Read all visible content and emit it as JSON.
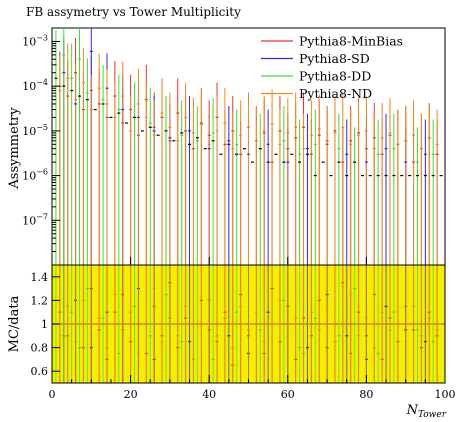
{
  "chart_data": {
    "type": "scatter",
    "title": "FB assymetry vs Tower Multiplicity",
    "xlabel": "N",
    "xlabel_sub": "Tower",
    "ylabel_main": "Assymmetry",
    "ylabel_ratio": "MC/data",
    "xlim": [
      0,
      100
    ],
    "ylim_main": [
      1e-08,
      0.002
    ],
    "ylim_ratio": [
      0.5,
      1.5
    ],
    "yscale_main": "log",
    "x_ticks": [
      "0",
      "20",
      "40",
      "60",
      "80",
      "100"
    ],
    "y_ticks_main": [
      {
        "base": "10",
        "exp": "−3",
        "value": 0.001
      },
      {
        "base": "10",
        "exp": "−4",
        "value": 0.0001
      },
      {
        "base": "10",
        "exp": "−5",
        "value": 1e-05
      },
      {
        "base": "10",
        "exp": "−6",
        "value": 1e-06
      },
      {
        "base": "10",
        "exp": "−7",
        "value": 1e-07
      }
    ],
    "y_ticks_ratio": [
      "0.6",
      "0.8",
      "1",
      "1.2",
      "1.4"
    ],
    "y_ticks_ratio_values": [
      0.6,
      0.8,
      1.0,
      1.2,
      1.4
    ],
    "ratio_band": [
      0.5,
      1.5
    ],
    "ratio_reference": 1.0,
    "legend_position": "top-right",
    "series": [
      {
        "name": "Pythia8-MinBias",
        "color": "#e8302a",
        "x": [
          2,
          4,
          6,
          8,
          10,
          12,
          14,
          16,
          18,
          20,
          22,
          24,
          26,
          28,
          30,
          32,
          34,
          36,
          38,
          40,
          42,
          44,
          46,
          48,
          50,
          52,
          54,
          56,
          58,
          60,
          62,
          64,
          66,
          68,
          70,
          72,
          74,
          76,
          78,
          80,
          82,
          84,
          86,
          88,
          90,
          92,
          94,
          96,
          98
        ],
        "y": [
          0.0001,
          6e-05,
          0.0002,
          3e-05,
          8e-05,
          4e-05,
          2e-05,
          6e-05,
          1.5e-05,
          3e-05,
          8e-06,
          5e-05,
          1.2e-05,
          2e-05,
          6e-06,
          2.5e-05,
          1e-05,
          4e-06,
          1.5e-05,
          8e-06,
          2e-05,
          5e-06,
          1e-05,
          3e-06,
          1.2e-05,
          6e-06,
          9e-06,
          2e-06,
          1e-05,
          4e-06,
          7e-06,
          1.2e-05,
          3e-06,
          8e-06,
          5e-06,
          1e-05,
          2e-06,
          6e-06,
          9e-06,
          4e-06,
          7e-06,
          3e-06,
          8e-06,
          5e-06,
          6e-06,
          2e-06,
          4e-06,
          7e-06,
          3e-06
        ],
        "ratio": [
          1.1,
          0.9,
          1.2,
          0.8,
          1.3,
          0.95,
          0.7,
          1.1,
          1.25,
          0.85,
          1.0,
          0.75,
          1.15,
          0.9,
          1.35,
          0.8,
          1.05,
          0.7,
          1.2,
          0.95,
          0.85,
          1.1,
          0.65,
          1.25,
          0.9,
          1.0,
          0.75,
          1.3,
          0.85,
          1.15,
          0.7,
          1.05,
          0.9,
          1.2,
          0.8,
          1.0,
          1.35,
          0.75,
          1.1,
          0.9,
          1.25,
          0.7,
          1.05,
          0.85,
          1.15,
          0.95,
          0.8,
          1.1,
          0.9
        ]
      },
      {
        "name": "Pythia8-SD",
        "color": "#2a2ae8",
        "x": [
          3,
          6,
          10,
          14,
          18,
          22,
          26,
          30,
          35,
          40,
          45,
          50,
          55,
          60,
          65,
          70,
          75,
          80,
          85,
          90,
          95
        ],
        "y": [
          0.0002,
          4e-05,
          0.0006,
          9e-05,
          3e-05,
          2e-05,
          1e-05,
          7e-06,
          1e-05,
          4e-06,
          6e-06,
          3e-06,
          5e-06,
          2e-06,
          4e-06,
          6e-06,
          3e-06,
          2e-06,
          4e-06,
          2e-06,
          3e-06
        ],
        "ratio": [
          0.9,
          1.2,
          0.8,
          1.1,
          0.95,
          1.3,
          0.7,
          1.05,
          0.85,
          1.2,
          0.9,
          0.75,
          1.1,
          1.0,
          0.8,
          1.25,
          0.9,
          0.7,
          1.15,
          0.95,
          0.85
        ]
      },
      {
        "name": "Pythia8-DD",
        "color": "#3ddc3d",
        "x": [
          1,
          3,
          5,
          7,
          9,
          13,
          17,
          21,
          25,
          29,
          33,
          37,
          41,
          47,
          53,
          59,
          63,
          67,
          73,
          77,
          83,
          87,
          93,
          97
        ],
        "y": [
          0.0003,
          0.0005,
          0.00015,
          0.0004,
          7e-05,
          5e-05,
          3e-05,
          2e-05,
          1.5e-05,
          1e-05,
          8e-06,
          6e-06,
          9e-06,
          5e-06,
          4e-06,
          6e-06,
          3e-06,
          5e-06,
          4e-06,
          2e-06,
          3e-06,
          4e-06,
          2e-06,
          3e-06
        ],
        "ratio": [
          1.2,
          0.9,
          1.1,
          0.8,
          1.3,
          1.05,
          0.75,
          1.15,
          0.9,
          1.25,
          0.85,
          1.0,
          0.7,
          1.1,
          0.95,
          1.2,
          0.8,
          1.05,
          0.9,
          1.3,
          0.75,
          1.1,
          0.95,
          0.85
        ]
      },
      {
        "name": "Pythia8-ND",
        "color": "#f08a1c",
        "x": [
          2,
          4,
          6,
          8,
          10,
          12,
          14,
          16,
          18,
          20,
          22,
          24,
          26,
          28,
          30,
          32,
          34,
          36,
          38,
          40,
          42,
          44,
          46,
          48,
          50,
          52,
          54,
          56,
          58,
          60,
          62,
          64,
          66,
          68,
          70,
          72,
          74,
          76,
          78,
          80,
          82,
          84,
          86,
          88,
          90,
          92,
          94,
          96,
          98
        ],
        "y": [
          8e-05,
          0.00015,
          5e-05,
          0.00012,
          3e-05,
          9e-05,
          4e-05,
          2e-05,
          6e-05,
          1e-05,
          4e-05,
          2e-05,
          8e-06,
          2.5e-05,
          1.2e-05,
          6e-06,
          2e-05,
          9e-06,
          1.4e-05,
          5e-06,
          1e-05,
          1.5e-05,
          4e-06,
          8e-06,
          1.2e-05,
          6e-06,
          1e-05,
          1.4e-05,
          5e-06,
          9e-06,
          1.2e-05,
          4e-06,
          8e-06,
          1.1e-05,
          6e-06,
          9e-06,
          1.2e-05,
          5e-06,
          8e-06,
          1e-05,
          4e-06,
          7e-06,
          9e-06,
          5e-06,
          6e-06,
          8e-06,
          4e-06,
          7e-06,
          5e-06
        ],
        "ratio": [
          1.0,
          1.15,
          0.85,
          1.2,
          0.9,
          1.05,
          0.8,
          1.25,
          0.95,
          1.1,
          0.75,
          1.0,
          1.3,
          0.85,
          1.05,
          0.9,
          1.15,
          0.7,
          1.0,
          1.2,
          0.9,
          1.05,
          0.8,
          1.15,
          0.95,
          1.1,
          0.85,
          1.0,
          1.2,
          0.9,
          1.05,
          0.75,
          1.1,
          0.95,
          1.15,
          0.85,
          1.0,
          1.25,
          0.9,
          1.05,
          0.8,
          1.1,
          0.95,
          1.0,
          0.85,
          1.15,
          0.9,
          1.05,
          0.95
        ]
      }
    ],
    "data_points": {
      "x": [
        1,
        3,
        5,
        7,
        9,
        11,
        13,
        15,
        17,
        19,
        21,
        23,
        25,
        27,
        29,
        31,
        33,
        35,
        37,
        39,
        41,
        43,
        45,
        47,
        49,
        51,
        53,
        55,
        57,
        59,
        61,
        63,
        65,
        67,
        69,
        71,
        73,
        75,
        77,
        79,
        81,
        83,
        85,
        87,
        89,
        91,
        93,
        95,
        97,
        99
      ],
      "y": [
        0.00015,
        0.0001,
        8e-05,
        6e-05,
        5e-05,
        3e-05,
        4e-05,
        2e-05,
        2.5e-05,
        1.5e-05,
        2e-05,
        1e-05,
        1.2e-05,
        8e-06,
        1e-05,
        6e-06,
        9e-06,
        5e-06,
        7e-06,
        4e-06,
        6e-06,
        3e-06,
        5e-06,
        3e-06,
        4e-06,
        2e-06,
        4e-06,
        2e-06,
        3e-06,
        2e-06,
        3e-06,
        2e-06,
        3e-06,
        1e-06,
        2e-06,
        1e-06,
        2e-06,
        1e-06,
        2e-06,
        1e-06,
        1e-06,
        1e-06,
        1e-06,
        1e-06,
        1e-06,
        1e-06,
        1e-06,
        1e-06,
        1e-06,
        1e-06
      ]
    }
  }
}
